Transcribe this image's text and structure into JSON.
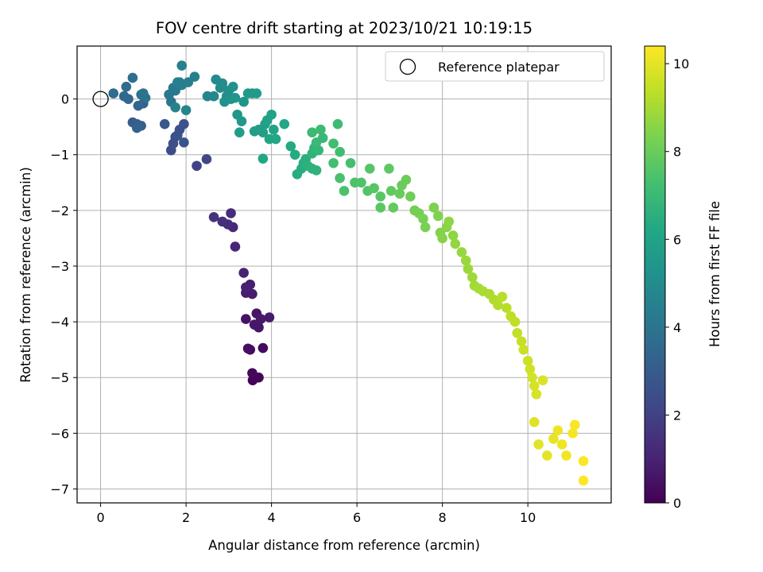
{
  "chart_data": {
    "type": "scatter",
    "title": "FOV centre drift starting at 2023/10/21 10:19:15",
    "xlabel": "Angular distance from reference (arcmin)",
    "ylabel": "Rotation from reference (arcmin)",
    "colorbar_label": "Hours from first FF file",
    "xlim": [
      -0.55,
      11.95
    ],
    "ylim": [
      -7.25,
      0.95
    ],
    "clim": [
      0,
      10.4
    ],
    "colormap": "viridis",
    "grid": true,
    "legend_position": "top-right",
    "x_ticks": [
      0,
      2,
      4,
      6,
      8,
      10
    ],
    "y_ticks": [
      0,
      -1,
      -2,
      -3,
      -4,
      -5,
      -6,
      -7
    ],
    "colorbar_ticks": [
      0,
      2,
      4,
      6,
      8,
      10
    ],
    "reference": {
      "label": "Reference platepar",
      "x": 0,
      "y": 0
    },
    "points": [
      [
        3.56,
        -5.05,
        0.05
      ],
      [
        3.7,
        -5.0,
        0.15
      ],
      [
        3.55,
        -4.92,
        0.2
      ],
      [
        3.8,
        -4.47,
        0.3
      ],
      [
        3.5,
        -4.5,
        0.35
      ],
      [
        3.45,
        -4.48,
        0.4
      ],
      [
        3.4,
        -3.95,
        0.5
      ],
      [
        3.65,
        -3.85,
        0.55
      ],
      [
        3.7,
        -4.1,
        0.6
      ],
      [
        3.6,
        -4.05,
        0.65
      ],
      [
        3.75,
        -3.95,
        0.7
      ],
      [
        3.95,
        -3.92,
        0.75
      ],
      [
        3.55,
        -3.5,
        0.8
      ],
      [
        3.4,
        -3.48,
        0.85
      ],
      [
        3.5,
        -3.33,
        0.9
      ],
      [
        3.4,
        -3.38,
        0.95
      ],
      [
        3.35,
        -3.12,
        1.0
      ],
      [
        3.15,
        -2.65,
        1.1
      ],
      [
        3.1,
        -2.3,
        1.2
      ],
      [
        3.05,
        -2.05,
        1.3
      ],
      [
        2.98,
        -2.25,
        1.35
      ],
      [
        2.85,
        -2.2,
        1.4
      ],
      [
        2.65,
        -2.12,
        1.5
      ],
      [
        2.25,
        -1.2,
        2.0
      ],
      [
        2.48,
        -1.08,
        2.2
      ],
      [
        1.65,
        -0.92,
        2.4
      ],
      [
        1.7,
        -0.8,
        2.45
      ],
      [
        1.75,
        -0.68,
        2.5
      ],
      [
        1.85,
        -0.55,
        2.55
      ],
      [
        1.95,
        -0.45,
        2.6
      ],
      [
        1.8,
        -0.65,
        2.65
      ],
      [
        1.95,
        -0.78,
        2.7
      ],
      [
        1.5,
        -0.45,
        2.8
      ],
      [
        0.85,
        -0.45,
        3.0
      ],
      [
        0.75,
        -0.42,
        3.1
      ],
      [
        0.95,
        -0.48,
        3.2
      ],
      [
        0.85,
        -0.52,
        3.25
      ],
      [
        1.0,
        -0.08,
        3.3
      ],
      [
        0.88,
        -0.12,
        3.35
      ],
      [
        0.65,
        0.0,
        3.5
      ],
      [
        0.55,
        0.05,
        3.55
      ],
      [
        0.3,
        0.1,
        3.6
      ],
      [
        0.6,
        0.22,
        3.7
      ],
      [
        0.75,
        0.38,
        3.8
      ],
      [
        1.05,
        0.02,
        3.9
      ],
      [
        0.95,
        0.08,
        3.95
      ],
      [
        1.0,
        0.1,
        4.0
      ],
      [
        1.65,
        -0.05,
        4.05
      ],
      [
        1.6,
        0.08,
        4.1
      ],
      [
        1.7,
        0.2,
        4.2
      ],
      [
        1.75,
        0.15,
        4.25
      ],
      [
        1.85,
        0.3,
        4.3
      ],
      [
        1.9,
        0.25,
        4.35
      ],
      [
        2.05,
        0.3,
        4.4
      ],
      [
        2.2,
        0.4,
        4.45
      ],
      [
        1.9,
        0.6,
        4.5
      ],
      [
        1.8,
        0.3,
        4.55
      ],
      [
        1.75,
        -0.15,
        4.6
      ],
      [
        2.0,
        -0.2,
        4.65
      ],
      [
        2.5,
        0.05,
        4.7
      ],
      [
        2.65,
        0.05,
        4.8
      ],
      [
        2.7,
        0.35,
        4.9
      ],
      [
        2.8,
        0.2,
        5.0
      ],
      [
        2.85,
        0.28,
        5.05
      ],
      [
        2.95,
        0.05,
        5.1
      ],
      [
        3.0,
        0.15,
        5.15
      ],
      [
        3.1,
        0.22,
        5.2
      ],
      [
        2.9,
        -0.05,
        5.25
      ],
      [
        3.05,
        0.0,
        5.3
      ],
      [
        3.15,
        0.02,
        5.35
      ],
      [
        3.35,
        -0.05,
        5.4
      ],
      [
        3.2,
        -0.28,
        5.45
      ],
      [
        3.3,
        -0.4,
        5.5
      ],
      [
        3.45,
        0.1,
        5.55
      ],
      [
        3.55,
        0.1,
        5.6
      ],
      [
        3.65,
        0.1,
        5.65
      ],
      [
        3.25,
        -0.6,
        5.7
      ],
      [
        3.6,
        -0.58,
        5.75
      ],
      [
        3.7,
        -0.55,
        5.8
      ],
      [
        3.8,
        -0.6,
        5.85
      ],
      [
        3.85,
        -0.45,
        5.9
      ],
      [
        3.9,
        -0.38,
        5.95
      ],
      [
        4.0,
        -0.28,
        6.0
      ],
      [
        4.05,
        -0.55,
        6.05
      ],
      [
        3.95,
        -0.72,
        6.1
      ],
      [
        4.1,
        -0.72,
        6.15
      ],
      [
        3.8,
        -1.07,
        6.2
      ],
      [
        4.3,
        -0.45,
        6.25
      ],
      [
        4.45,
        -0.85,
        6.3
      ],
      [
        4.55,
        -1.0,
        6.35
      ],
      [
        4.6,
        -1.35,
        6.4
      ],
      [
        4.7,
        -1.25,
        6.45
      ],
      [
        4.75,
        -1.15,
        6.5
      ],
      [
        4.8,
        -1.08,
        6.55
      ],
      [
        4.85,
        -1.2,
        6.6
      ],
      [
        4.95,
        -1.25,
        6.65
      ],
      [
        5.05,
        -1.28,
        6.7
      ],
      [
        4.95,
        -0.98,
        6.75
      ],
      [
        5.0,
        -0.88,
        6.8
      ],
      [
        5.1,
        -0.92,
        6.85
      ],
      [
        5.2,
        -0.7,
        6.9
      ],
      [
        5.05,
        -0.78,
        6.95
      ],
      [
        4.95,
        -0.6,
        7.0
      ],
      [
        5.15,
        -0.55,
        7.05
      ],
      [
        5.55,
        -0.45,
        7.1
      ],
      [
        5.45,
        -0.8,
        7.15
      ],
      [
        5.6,
        -0.95,
        7.2
      ],
      [
        5.45,
        -1.15,
        7.25
      ],
      [
        5.85,
        -1.15,
        7.3
      ],
      [
        5.6,
        -1.42,
        7.35
      ],
      [
        5.7,
        -1.65,
        7.4
      ],
      [
        5.95,
        -1.5,
        7.45
      ],
      [
        6.1,
        -1.5,
        7.5
      ],
      [
        6.25,
        -1.65,
        7.55
      ],
      [
        6.3,
        -1.25,
        7.6
      ],
      [
        6.4,
        -1.6,
        7.65
      ],
      [
        6.55,
        -1.75,
        7.7
      ],
      [
        6.55,
        -1.95,
        7.75
      ],
      [
        6.75,
        -1.25,
        7.8
      ],
      [
        6.8,
        -1.65,
        7.85
      ],
      [
        6.85,
        -1.95,
        7.9
      ],
      [
        7.0,
        -1.7,
        7.95
      ],
      [
        7.05,
        -1.55,
        8.0
      ],
      [
        7.15,
        -1.45,
        8.05
      ],
      [
        7.25,
        -1.75,
        8.1
      ],
      [
        7.35,
        -2.0,
        8.15
      ],
      [
        7.45,
        -2.05,
        8.2
      ],
      [
        7.55,
        -2.15,
        8.25
      ],
      [
        7.6,
        -2.3,
        8.3
      ],
      [
        7.8,
        -1.95,
        8.35
      ],
      [
        7.9,
        -2.1,
        8.4
      ],
      [
        7.95,
        -2.4,
        8.45
      ],
      [
        8.0,
        -2.5,
        8.5
      ],
      [
        8.1,
        -2.3,
        8.55
      ],
      [
        8.15,
        -2.2,
        8.6
      ],
      [
        8.25,
        -2.45,
        8.65
      ],
      [
        8.3,
        -2.6,
        8.7
      ],
      [
        8.45,
        -2.75,
        8.75
      ],
      [
        8.55,
        -2.9,
        8.8
      ],
      [
        8.6,
        -3.05,
        8.85
      ],
      [
        8.7,
        -3.2,
        8.9
      ],
      [
        8.75,
        -3.35,
        8.95
      ],
      [
        8.85,
        -3.4,
        9.0
      ],
      [
        8.95,
        -3.45,
        9.05
      ],
      [
        9.1,
        -3.5,
        9.1
      ],
      [
        9.2,
        -3.6,
        9.15
      ],
      [
        9.3,
        -3.7,
        9.2
      ],
      [
        9.4,
        -3.55,
        9.25
      ],
      [
        9.5,
        -3.75,
        9.3
      ],
      [
        9.6,
        -3.9,
        9.35
      ],
      [
        9.7,
        -4.0,
        9.4
      ],
      [
        9.75,
        -4.2,
        9.45
      ],
      [
        9.85,
        -4.35,
        9.5
      ],
      [
        9.9,
        -4.5,
        9.55
      ],
      [
        10.0,
        -4.7,
        9.6
      ],
      [
        10.05,
        -4.85,
        9.65
      ],
      [
        10.1,
        -5.0,
        9.7
      ],
      [
        10.15,
        -5.15,
        9.75
      ],
      [
        10.2,
        -5.3,
        9.8
      ],
      [
        10.35,
        -5.05,
        9.85
      ],
      [
        10.15,
        -5.8,
        9.9
      ],
      [
        10.25,
        -6.2,
        9.95
      ],
      [
        10.45,
        -6.4,
        10.0
      ],
      [
        10.6,
        -6.1,
        10.05
      ],
      [
        10.7,
        -5.95,
        10.1
      ],
      [
        10.8,
        -6.2,
        10.15
      ],
      [
        10.9,
        -6.4,
        10.2
      ],
      [
        11.05,
        -6.0,
        10.25
      ],
      [
        11.1,
        -5.85,
        10.3
      ],
      [
        11.3,
        -6.5,
        10.35
      ],
      [
        11.3,
        -6.85,
        10.4
      ]
    ]
  }
}
